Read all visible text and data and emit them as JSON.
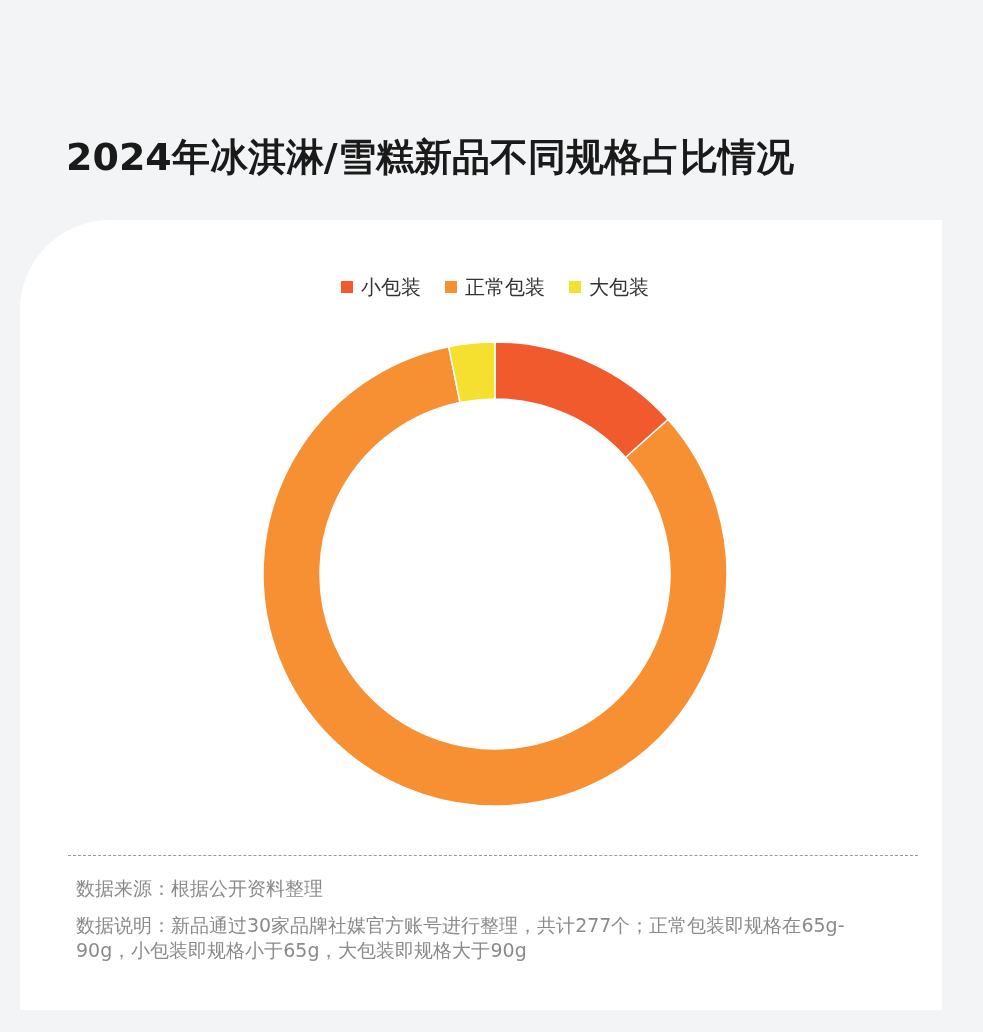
{
  "chart_data": {
    "type": "donut",
    "title": "2024年冰淇淋/雪糕新品不同规格占比情况",
    "categories": [
      "小包装",
      "正常包装",
      "大包装"
    ],
    "values": [
      13.4,
      83.4,
      3.2
    ],
    "colors": [
      "#f05a2d",
      "#f78f33",
      "#f5e02f"
    ],
    "legend": "top",
    "annotations": [
      "数据来源：根据公开资料整理",
      "数据说明：新品通过30家品牌社媒官方账号进行整理，共计277个；正常包装即规格在65g-90g，小包装即规格小于65g，大包装即规格大于90g"
    ]
  }
}
